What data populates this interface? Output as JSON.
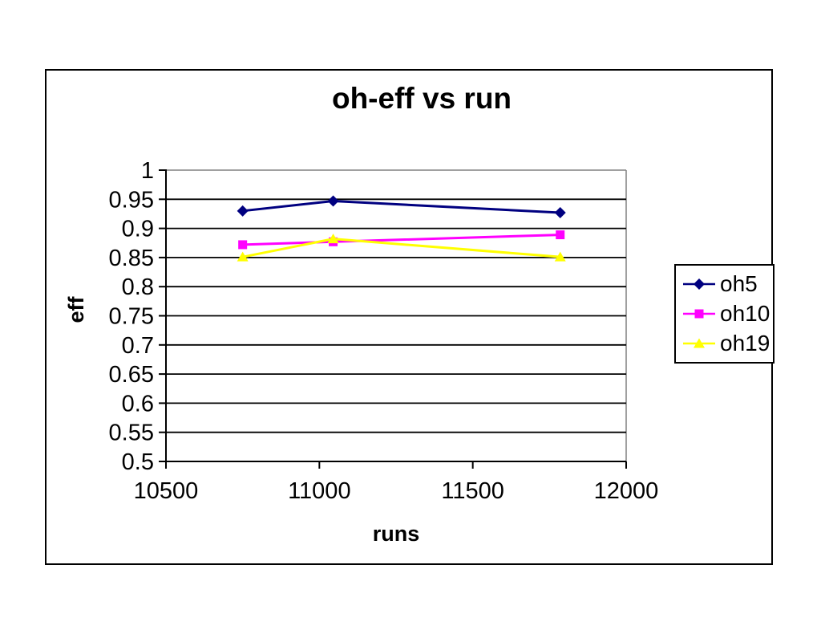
{
  "chart_data": {
    "type": "line",
    "title": "oh-eff vs run",
    "xlabel": "runs",
    "ylabel": "eff",
    "grid": true,
    "legend_position": "right",
    "x": [
      10750,
      11045,
      11785
    ],
    "series": [
      {
        "name": "oh5",
        "color": "#000080",
        "marker": "diamond",
        "values": [
          0.93,
          0.947,
          0.927
        ]
      },
      {
        "name": "oh10",
        "color": "#FF00FF",
        "marker": "square",
        "values": [
          0.872,
          0.877,
          0.889
        ]
      },
      {
        "name": "oh19",
        "color": "#FFFF00",
        "marker": "triangle",
        "values": [
          0.851,
          0.882,
          0.851
        ]
      }
    ],
    "x_axis": {
      "min": 10500,
      "max": 12000,
      "ticks": [
        10500,
        11000,
        11500,
        12000
      ],
      "tick_labels": [
        "10500",
        "11000",
        "11500",
        "12000"
      ]
    },
    "y_axis": {
      "min": 0.5,
      "max": 1.0,
      "ticks": [
        1.0,
        0.95,
        0.9,
        0.85,
        0.8,
        0.75,
        0.7,
        0.65,
        0.6,
        0.55,
        0.5
      ],
      "tick_labels": [
        "1",
        "0.95",
        "0.9",
        "0.85",
        "0.8",
        "0.75",
        "0.7",
        "0.65",
        "0.6",
        "0.55",
        "0.5"
      ]
    },
    "colors": {
      "plot_border": "#808080",
      "gridline": "#000000",
      "axis": "#000000",
      "text": "#000000",
      "background": "#ffffff"
    }
  }
}
